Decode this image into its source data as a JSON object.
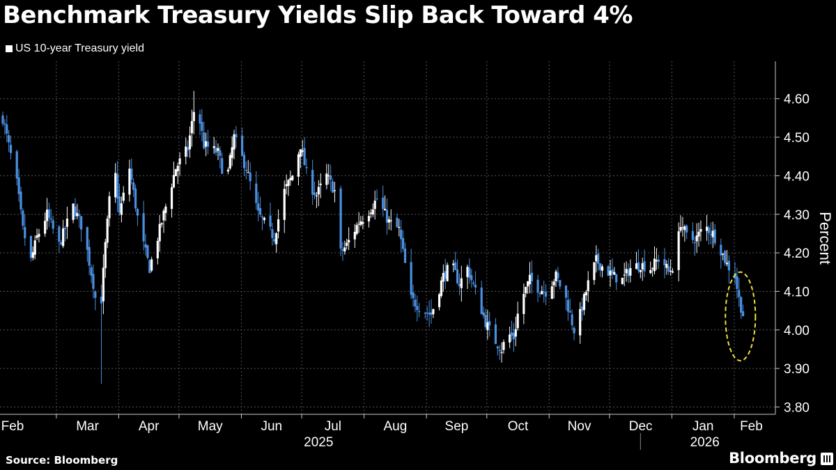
{
  "title": "Benchmark Treasury Yields Slip Back Toward 4%",
  "source": "Source: Bloomberg",
  "brand": "Bloomberg",
  "colors": {
    "up": "#ffffff",
    "down": "#4a90e2",
    "highlight": "#f2e33a",
    "background": "#000000"
  },
  "chart_data": {
    "type": "candlestick",
    "title": "Benchmark Treasury Yields Slip Back Toward 4%",
    "legend": [
      "US 10-year Treasury yield"
    ],
    "ylabel": "Percent",
    "ylim": [
      3.78,
      4.72
    ],
    "yticks": [
      3.8,
      3.9,
      4.0,
      4.1,
      4.2,
      4.3,
      4.4,
      4.5,
      4.6
    ],
    "ytick_labels": [
      "3.80",
      "3.90",
      "4.00",
      "4.10",
      "4.20",
      "4.30",
      "4.40",
      "4.50",
      "4.60"
    ],
    "xlim_days": [
      0,
      382
    ],
    "months": [
      {
        "label": "Feb",
        "day": 0
      },
      {
        "label": "Mar",
        "day": 28
      },
      {
        "label": "Apr",
        "day": 59
      },
      {
        "label": "May",
        "day": 89
      },
      {
        "label": "Jun",
        "day": 120
      },
      {
        "label": "Jul",
        "day": 150
      },
      {
        "label": "Aug",
        "day": 181
      },
      {
        "label": "Sep",
        "day": 212
      },
      {
        "label": "Oct",
        "day": 242
      },
      {
        "label": "Nov",
        "day": 273
      },
      {
        "label": "Dec",
        "day": 303
      },
      {
        "label": "Jan",
        "day": 334
      },
      {
        "label": "Feb",
        "day": 365
      }
    ],
    "years": [
      {
        "label": "2025",
        "day": 157
      },
      {
        "label": "2026",
        "day": 349
      }
    ],
    "year_divider_day": 317,
    "close_anchors": [
      {
        "day": 0,
        "value": 4.55
      },
      {
        "day": 7,
        "value": 4.38
      },
      {
        "day": 10,
        "value": 4.26
      },
      {
        "day": 14,
        "value": 4.18
      },
      {
        "day": 17,
        "value": 4.24
      },
      {
        "day": 22,
        "value": 4.3
      },
      {
        "day": 28,
        "value": 4.22
      },
      {
        "day": 35,
        "value": 4.32
      },
      {
        "day": 40,
        "value": 4.26
      },
      {
        "day": 45,
        "value": 4.12
      },
      {
        "day": 48,
        "value": 4.01
      },
      {
        "day": 51,
        "value": 4.22
      },
      {
        "day": 55,
        "value": 4.45
      },
      {
        "day": 58,
        "value": 4.3
      },
      {
        "day": 63,
        "value": 4.42
      },
      {
        "day": 68,
        "value": 4.26
      },
      {
        "day": 73,
        "value": 4.16
      },
      {
        "day": 80,
        "value": 4.3
      },
      {
        "day": 86,
        "value": 4.42
      },
      {
        "day": 92,
        "value": 4.47
      },
      {
        "day": 96,
        "value": 4.6
      },
      {
        "day": 100,
        "value": 4.48
      },
      {
        "day": 107,
        "value": 4.46
      },
      {
        "day": 111,
        "value": 4.38
      },
      {
        "day": 115,
        "value": 4.5
      },
      {
        "day": 121,
        "value": 4.42
      },
      {
        "day": 127,
        "value": 4.3
      },
      {
        "day": 131,
        "value": 4.27
      },
      {
        "day": 135,
        "value": 4.24
      },
      {
        "day": 140,
        "value": 4.36
      },
      {
        "day": 144,
        "value": 4.4
      },
      {
        "day": 148,
        "value": 4.48
      },
      {
        "day": 152,
        "value": 4.38
      },
      {
        "day": 156,
        "value": 4.35
      },
      {
        "day": 161,
        "value": 4.4
      },
      {
        "day": 165,
        "value": 4.36
      },
      {
        "day": 168,
        "value": 4.2
      },
      {
        "day": 171,
        "value": 4.22
      },
      {
        "day": 177,
        "value": 4.28
      },
      {
        "day": 181,
        "value": 4.3
      },
      {
        "day": 186,
        "value": 4.34
      },
      {
        "day": 192,
        "value": 4.28
      },
      {
        "day": 197,
        "value": 4.26
      },
      {
        "day": 200,
        "value": 4.17
      },
      {
        "day": 203,
        "value": 4.08
      },
      {
        "day": 209,
        "value": 4.05
      },
      {
        "day": 213,
        "value": 4.04
      },
      {
        "day": 219,
        "value": 4.14
      },
      {
        "day": 223,
        "value": 4.17
      },
      {
        "day": 227,
        "value": 4.12
      },
      {
        "day": 231,
        "value": 4.16
      },
      {
        "day": 235,
        "value": 4.1
      },
      {
        "day": 240,
        "value": 4.02
      },
      {
        "day": 245,
        "value": 3.97
      },
      {
        "day": 248,
        "value": 3.95
      },
      {
        "day": 251,
        "value": 3.99
      },
      {
        "day": 254,
        "value": 3.98
      },
      {
        "day": 257,
        "value": 4.07
      },
      {
        "day": 262,
        "value": 4.13
      },
      {
        "day": 266,
        "value": 4.11
      },
      {
        "day": 270,
        "value": 4.1
      },
      {
        "day": 275,
        "value": 4.14
      },
      {
        "day": 280,
        "value": 4.08
      },
      {
        "day": 284,
        "value": 4.0
      },
      {
        "day": 287,
        "value": 4.04
      },
      {
        "day": 291,
        "value": 4.12
      },
      {
        "day": 295,
        "value": 4.18
      },
      {
        "day": 299,
        "value": 4.16
      },
      {
        "day": 303,
        "value": 4.14
      },
      {
        "day": 308,
        "value": 4.13
      },
      {
        "day": 312,
        "value": 4.16
      },
      {
        "day": 317,
        "value": 4.17
      },
      {
        "day": 322,
        "value": 4.16
      },
      {
        "day": 327,
        "value": 4.19
      },
      {
        "day": 331,
        "value": 4.15
      },
      {
        "day": 334,
        "value": 4.17
      },
      {
        "day": 337,
        "value": 4.28
      },
      {
        "day": 341,
        "value": 4.23
      },
      {
        "day": 345,
        "value": 4.24
      },
      {
        "day": 349,
        "value": 4.27
      },
      {
        "day": 353,
        "value": 4.25
      },
      {
        "day": 356,
        "value": 4.22
      },
      {
        "day": 360,
        "value": 4.17
      },
      {
        "day": 364,
        "value": 4.14
      },
      {
        "day": 366,
        "value": 4.08
      },
      {
        "day": 368,
        "value": 4.04
      }
    ],
    "range_extremes": {
      "high": {
        "day": 95,
        "value": 4.62
      },
      "low": {
        "day": 49,
        "value": 3.86
      },
      "latest": {
        "day": 368,
        "value": 4.04
      }
    },
    "annotations": [
      {
        "type": "dashed-ellipse",
        "label": "",
        "day_range": [
          362,
          370
        ],
        "value_range": [
          3.92,
          4.15
        ]
      }
    ]
  }
}
